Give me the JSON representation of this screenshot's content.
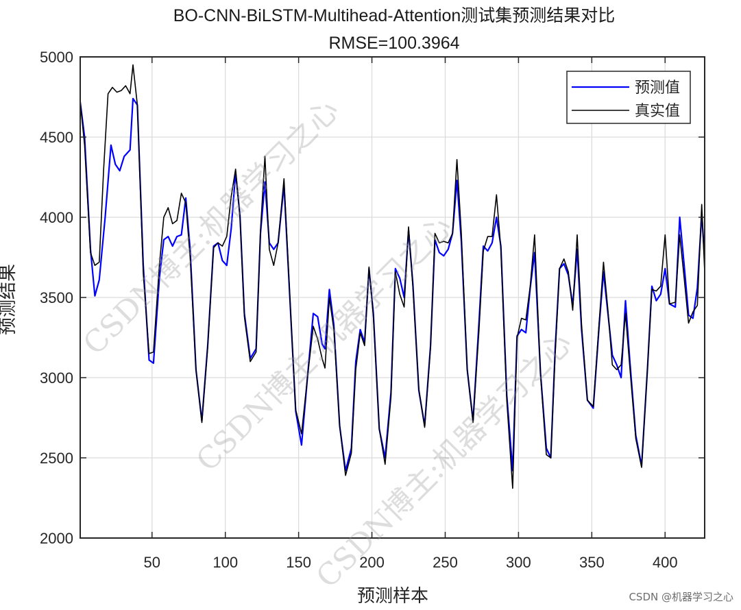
{
  "chart_data": {
    "type": "line",
    "title": "BO-CNN-BiLSTM-Multihead-Attention测试集预测结果对比",
    "subtitle": "RMSE=100.3964",
    "xlabel": "预测样本",
    "ylabel": "预测结果",
    "xlim": [
      1,
      427
    ],
    "ylim": [
      2000,
      5000
    ],
    "x_ticks": [
      50,
      100,
      150,
      200,
      250,
      300,
      350,
      400
    ],
    "y_ticks": [
      2000,
      2500,
      3000,
      3500,
      4000,
      4500,
      5000
    ],
    "grid": true,
    "legend_position": "top-right",
    "series": [
      {
        "name": "预测值",
        "color": "#0000ff",
        "points": [
          [
            1,
            4720
          ],
          [
            4,
            4500
          ],
          [
            8,
            3800
          ],
          [
            11,
            3510
          ],
          [
            14,
            3610
          ],
          [
            18,
            4000
          ],
          [
            22,
            4450
          ],
          [
            25,
            4330
          ],
          [
            28,
            4290
          ],
          [
            31,
            4380
          ],
          [
            35,
            4420
          ],
          [
            37,
            4740
          ],
          [
            40,
            4700
          ],
          [
            44,
            3700
          ],
          [
            48,
            3110
          ],
          [
            51,
            3090
          ],
          [
            55,
            3620
          ],
          [
            58,
            3860
          ],
          [
            61,
            3880
          ],
          [
            64,
            3820
          ],
          [
            67,
            3880
          ],
          [
            70,
            3890
          ],
          [
            73,
            4120
          ],
          [
            76,
            3800
          ],
          [
            80,
            3050
          ],
          [
            84,
            2730
          ],
          [
            88,
            3200
          ],
          [
            92,
            3820
          ],
          [
            95,
            3840
          ],
          [
            98,
            3730
          ],
          [
            101,
            3700
          ],
          [
            104,
            3930
          ],
          [
            107,
            4280
          ],
          [
            110,
            4010
          ],
          [
            113,
            3400
          ],
          [
            117,
            3120
          ],
          [
            121,
            3180
          ],
          [
            124,
            3900
          ],
          [
            127,
            4220
          ],
          [
            130,
            3840
          ],
          [
            133,
            3800
          ],
          [
            136,
            3840
          ],
          [
            140,
            4200
          ],
          [
            144,
            3500
          ],
          [
            148,
            2790
          ],
          [
            152,
            2580
          ],
          [
            156,
            3000
          ],
          [
            160,
            3400
          ],
          [
            163,
            3380
          ],
          [
            166,
            3210
          ],
          [
            168,
            3180
          ],
          [
            171,
            3550
          ],
          [
            174,
            3330
          ],
          [
            178,
            2700
          ],
          [
            182,
            2420
          ],
          [
            186,
            2560
          ],
          [
            189,
            3100
          ],
          [
            192,
            3300
          ],
          [
            195,
            3220
          ],
          [
            198,
            3680
          ],
          [
            201,
            3400
          ],
          [
            205,
            2680
          ],
          [
            209,
            2500
          ],
          [
            213,
            2910
          ],
          [
            216,
            3680
          ],
          [
            219,
            3620
          ],
          [
            222,
            3500
          ],
          [
            225,
            3920
          ],
          [
            228,
            3580
          ],
          [
            232,
            2920
          ],
          [
            236,
            2700
          ],
          [
            240,
            3200
          ],
          [
            243,
            3860
          ],
          [
            246,
            3780
          ],
          [
            249,
            3760
          ],
          [
            252,
            3800
          ],
          [
            255,
            3900
          ],
          [
            258,
            4230
          ],
          [
            261,
            3850
          ],
          [
            265,
            3050
          ],
          [
            269,
            2730
          ],
          [
            273,
            3340
          ],
          [
            276,
            3820
          ],
          [
            279,
            3790
          ],
          [
            282,
            3840
          ],
          [
            285,
            4000
          ],
          [
            288,
            3820
          ],
          [
            292,
            2890
          ],
          [
            296,
            2420
          ],
          [
            299,
            3260
          ],
          [
            302,
            3300
          ],
          [
            305,
            3280
          ],
          [
            308,
            3560
          ],
          [
            311,
            3780
          ],
          [
            315,
            3030
          ],
          [
            319,
            2560
          ],
          [
            322,
            2500
          ],
          [
            325,
            3180
          ],
          [
            328,
            3680
          ],
          [
            331,
            3710
          ],
          [
            334,
            3640
          ],
          [
            337,
            3450
          ],
          [
            340,
            3800
          ],
          [
            343,
            3300
          ],
          [
            347,
            2860
          ],
          [
            351,
            2810
          ],
          [
            355,
            3320
          ],
          [
            358,
            3660
          ],
          [
            361,
            3400
          ],
          [
            364,
            3140
          ],
          [
            367,
            3080
          ],
          [
            370,
            3000
          ],
          [
            373,
            3480
          ],
          [
            376,
            3100
          ],
          [
            380,
            2640
          ],
          [
            384,
            2450
          ],
          [
            388,
            3060
          ],
          [
            391,
            3570
          ],
          [
            394,
            3480
          ],
          [
            397,
            3520
          ],
          [
            400,
            3680
          ],
          [
            403,
            3460
          ],
          [
            407,
            3440
          ],
          [
            410,
            4000
          ],
          [
            413,
            3700
          ],
          [
            416,
            3390
          ],
          [
            419,
            3370
          ],
          [
            422,
            3560
          ],
          [
            425,
            4020
          ],
          [
            427,
            3740
          ]
        ]
      },
      {
        "name": "真实值",
        "color": "#000000",
        "points": [
          [
            1,
            4720
          ],
          [
            4,
            4450
          ],
          [
            8,
            3780
          ],
          [
            11,
            3700
          ],
          [
            14,
            3720
          ],
          [
            17,
            4300
          ],
          [
            20,
            4770
          ],
          [
            23,
            4810
          ],
          [
            26,
            4780
          ],
          [
            29,
            4790
          ],
          [
            32,
            4820
          ],
          [
            35,
            4770
          ],
          [
            37,
            4950
          ],
          [
            40,
            4700
          ],
          [
            44,
            3650
          ],
          [
            48,
            3150
          ],
          [
            51,
            3160
          ],
          [
            55,
            3700
          ],
          [
            58,
            4000
          ],
          [
            61,
            4060
          ],
          [
            64,
            3960
          ],
          [
            67,
            3980
          ],
          [
            70,
            4150
          ],
          [
            73,
            4090
          ],
          [
            76,
            3750
          ],
          [
            80,
            3050
          ],
          [
            84,
            2720
          ],
          [
            88,
            3190
          ],
          [
            92,
            3810
          ],
          [
            95,
            3840
          ],
          [
            98,
            3820
          ],
          [
            101,
            3880
          ],
          [
            104,
            4130
          ],
          [
            107,
            4300
          ],
          [
            110,
            4000
          ],
          [
            113,
            3380
          ],
          [
            117,
            3100
          ],
          [
            121,
            3160
          ],
          [
            124,
            3920
          ],
          [
            127,
            4380
          ],
          [
            130,
            3800
          ],
          [
            133,
            3700
          ],
          [
            136,
            3840
          ],
          [
            140,
            4240
          ],
          [
            144,
            3510
          ],
          [
            148,
            2800
          ],
          [
            152,
            2650
          ],
          [
            156,
            3000
          ],
          [
            160,
            3320
          ],
          [
            163,
            3240
          ],
          [
            166,
            3120
          ],
          [
            168,
            3060
          ],
          [
            171,
            3500
          ],
          [
            174,
            3300
          ],
          [
            178,
            2700
          ],
          [
            182,
            2390
          ],
          [
            186,
            2530
          ],
          [
            189,
            3050
          ],
          [
            192,
            3280
          ],
          [
            195,
            3200
          ],
          [
            198,
            3690
          ],
          [
            201,
            3380
          ],
          [
            205,
            2680
          ],
          [
            209,
            2460
          ],
          [
            213,
            2880
          ],
          [
            216,
            3660
          ],
          [
            219,
            3520
          ],
          [
            222,
            3440
          ],
          [
            225,
            3940
          ],
          [
            228,
            3560
          ],
          [
            232,
            2930
          ],
          [
            236,
            2690
          ],
          [
            240,
            3190
          ],
          [
            243,
            3900
          ],
          [
            246,
            3840
          ],
          [
            249,
            3850
          ],
          [
            252,
            3840
          ],
          [
            255,
            3900
          ],
          [
            258,
            4360
          ],
          [
            261,
            3900
          ],
          [
            265,
            3050
          ],
          [
            269,
            2720
          ],
          [
            273,
            3290
          ],
          [
            276,
            3790
          ],
          [
            279,
            3880
          ],
          [
            282,
            3880
          ],
          [
            285,
            4140
          ],
          [
            288,
            3800
          ],
          [
            292,
            2860
          ],
          [
            296,
            2310
          ],
          [
            299,
            3250
          ],
          [
            302,
            3370
          ],
          [
            305,
            3360
          ],
          [
            308,
            3570
          ],
          [
            311,
            3890
          ],
          [
            315,
            3020
          ],
          [
            319,
            2520
          ],
          [
            322,
            2500
          ],
          [
            325,
            3140
          ],
          [
            328,
            3680
          ],
          [
            331,
            3740
          ],
          [
            334,
            3660
          ],
          [
            337,
            3420
          ],
          [
            340,
            3890
          ],
          [
            343,
            3330
          ],
          [
            347,
            2860
          ],
          [
            351,
            2820
          ],
          [
            355,
            3340
          ],
          [
            358,
            3720
          ],
          [
            361,
            3420
          ],
          [
            364,
            3080
          ],
          [
            367,
            3050
          ],
          [
            370,
            3080
          ],
          [
            373,
            3400
          ],
          [
            376,
            3060
          ],
          [
            380,
            2620
          ],
          [
            384,
            2440
          ],
          [
            388,
            3060
          ],
          [
            391,
            3550
          ],
          [
            394,
            3540
          ],
          [
            397,
            3570
          ],
          [
            400,
            3890
          ],
          [
            403,
            3460
          ],
          [
            407,
            3470
          ],
          [
            410,
            3890
          ],
          [
            413,
            3620
          ],
          [
            416,
            3340
          ],
          [
            419,
            3410
          ],
          [
            422,
            3450
          ],
          [
            425,
            4080
          ],
          [
            427,
            3660
          ]
        ]
      }
    ]
  },
  "legend": {
    "items": [
      "预测值",
      "真实值"
    ]
  },
  "watermark": {
    "diagonal_1": "CSDN博主:机器学习之心",
    "diagonal_2": "CSDN博主:机器学习之心",
    "diagonal_3": "CSDN博主:机器学习之心",
    "footer": "CSDN @机器学习之心"
  }
}
